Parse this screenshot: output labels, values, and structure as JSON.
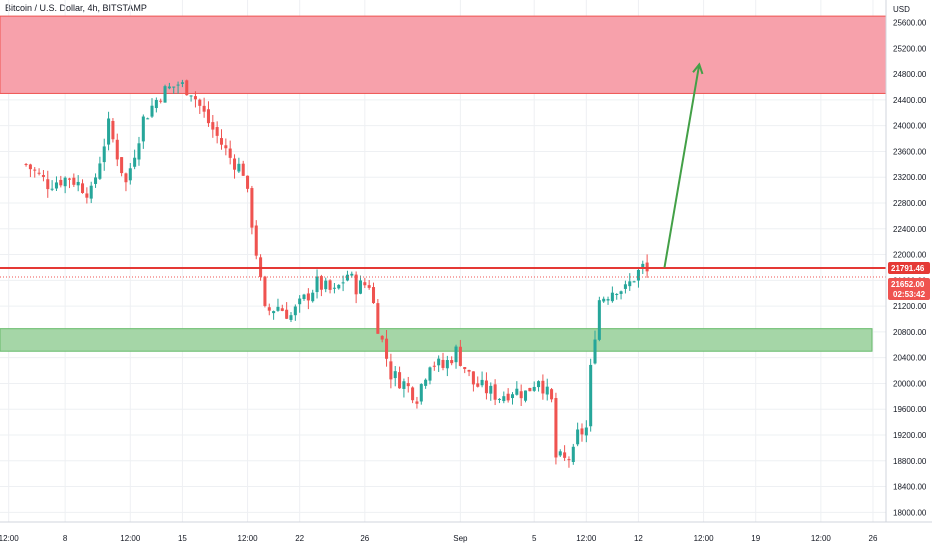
{
  "header": {
    "symbol_title": "Bitcoin / U.S. Dollar, 4h, BITSTAMP",
    "currency_label": "USD"
  },
  "colors": {
    "up_candle": "#26a69a",
    "down_candle": "#ef5350",
    "resistance_zone": "#f7a1ab",
    "support_zone": "#a5d6a7",
    "level_line": "#e53935",
    "arrow": "#43a047",
    "grid": "#eef0f3"
  },
  "price_tags": {
    "level": "21791.46",
    "last": "21652.00",
    "countdown": "02:53:42"
  },
  "chart_data": {
    "type": "candlestick",
    "title": "Bitcoin / U.S. Dollar, 4h, BITSTAMP",
    "ylabel": "USD",
    "ylim": [
      17850,
      25950
    ],
    "y_ticks": [
      18000,
      18400,
      18800,
      19200,
      19600,
      20000,
      20400,
      20800,
      21200,
      21600,
      22000,
      22400,
      22800,
      23200,
      23600,
      24000,
      24400,
      24800,
      25200,
      25600
    ],
    "x_tick_labels": [
      {
        "label": "12:00",
        "bar": -4
      },
      {
        "label": "8",
        "bar": 9
      },
      {
        "label": "12:00",
        "bar": 24
      },
      {
        "label": "15",
        "bar": 36
      },
      {
        "label": "12:00",
        "bar": 51
      },
      {
        "label": "22",
        "bar": 63
      },
      {
        "label": "26",
        "bar": 78
      },
      {
        "label": "Sep",
        "bar": 100
      },
      {
        "label": "5",
        "bar": 117
      },
      {
        "label": "12:00",
        "bar": 129
      },
      {
        "label": "12",
        "bar": 141
      },
      {
        "label": "12:00",
        "bar": 156
      },
      {
        "label": "19",
        "bar": 168
      },
      {
        "label": "12:00",
        "bar": 183
      },
      {
        "label": "26",
        "bar": 195
      }
    ],
    "x_range_bars": [
      -6,
      198
    ],
    "candle_anchors": [
      [
        0,
        23400
      ],
      [
        5,
        23100
      ],
      [
        10,
        23200
      ],
      [
        15,
        22950
      ],
      [
        19,
        24000
      ],
      [
        23,
        23100
      ],
      [
        27,
        24100
      ],
      [
        31,
        24500
      ],
      [
        35,
        24650
      ],
      [
        38,
        24550
      ],
      [
        42,
        24050
      ],
      [
        47,
        23500
      ],
      [
        50,
        23300
      ],
      [
        52,
        22500
      ],
      [
        55,
        21100
      ],
      [
        58,
        21200
      ],
      [
        61,
        21050
      ],
      [
        64,
        21300
      ],
      [
        67,
        21550
      ],
      [
        71,
        21400
      ],
      [
        74,
        21700
      ],
      [
        76,
        21500
      ],
      [
        79,
        21550
      ],
      [
        81,
        20900
      ],
      [
        84,
        20150
      ],
      [
        87,
        20000
      ],
      [
        90,
        19800
      ],
      [
        93,
        20350
      ],
      [
        96,
        20250
      ],
      [
        99,
        20500
      ],
      [
        103,
        20000
      ],
      [
        106,
        19900
      ],
      [
        109,
        19800
      ],
      [
        112,
        19900
      ],
      [
        115,
        19850
      ],
      [
        118,
        20100
      ],
      [
        121,
        19700
      ],
      [
        122,
        18850
      ],
      [
        124,
        18800
      ],
      [
        126,
        18900
      ],
      [
        127,
        19200
      ],
      [
        129,
        19300
      ],
      [
        130,
        20200
      ],
      [
        131,
        20800
      ],
      [
        132,
        21300
      ],
      [
        134,
        21400
      ],
      [
        136,
        21500
      ],
      [
        138,
        21450
      ],
      [
        140,
        21650
      ],
      [
        142,
        21800
      ],
      [
        143,
        21720
      ]
    ],
    "candle_seed": 7,
    "annotations": {
      "resistance_zone": [
        24500,
        25700
      ],
      "support_zone": [
        20500,
        20850
      ],
      "horizontal_level": 21791.46,
      "arrow": {
        "from": {
          "bar": 147,
          "price": 21800
        },
        "to": {
          "bar": 155,
          "price": 24950
        }
      }
    }
  }
}
